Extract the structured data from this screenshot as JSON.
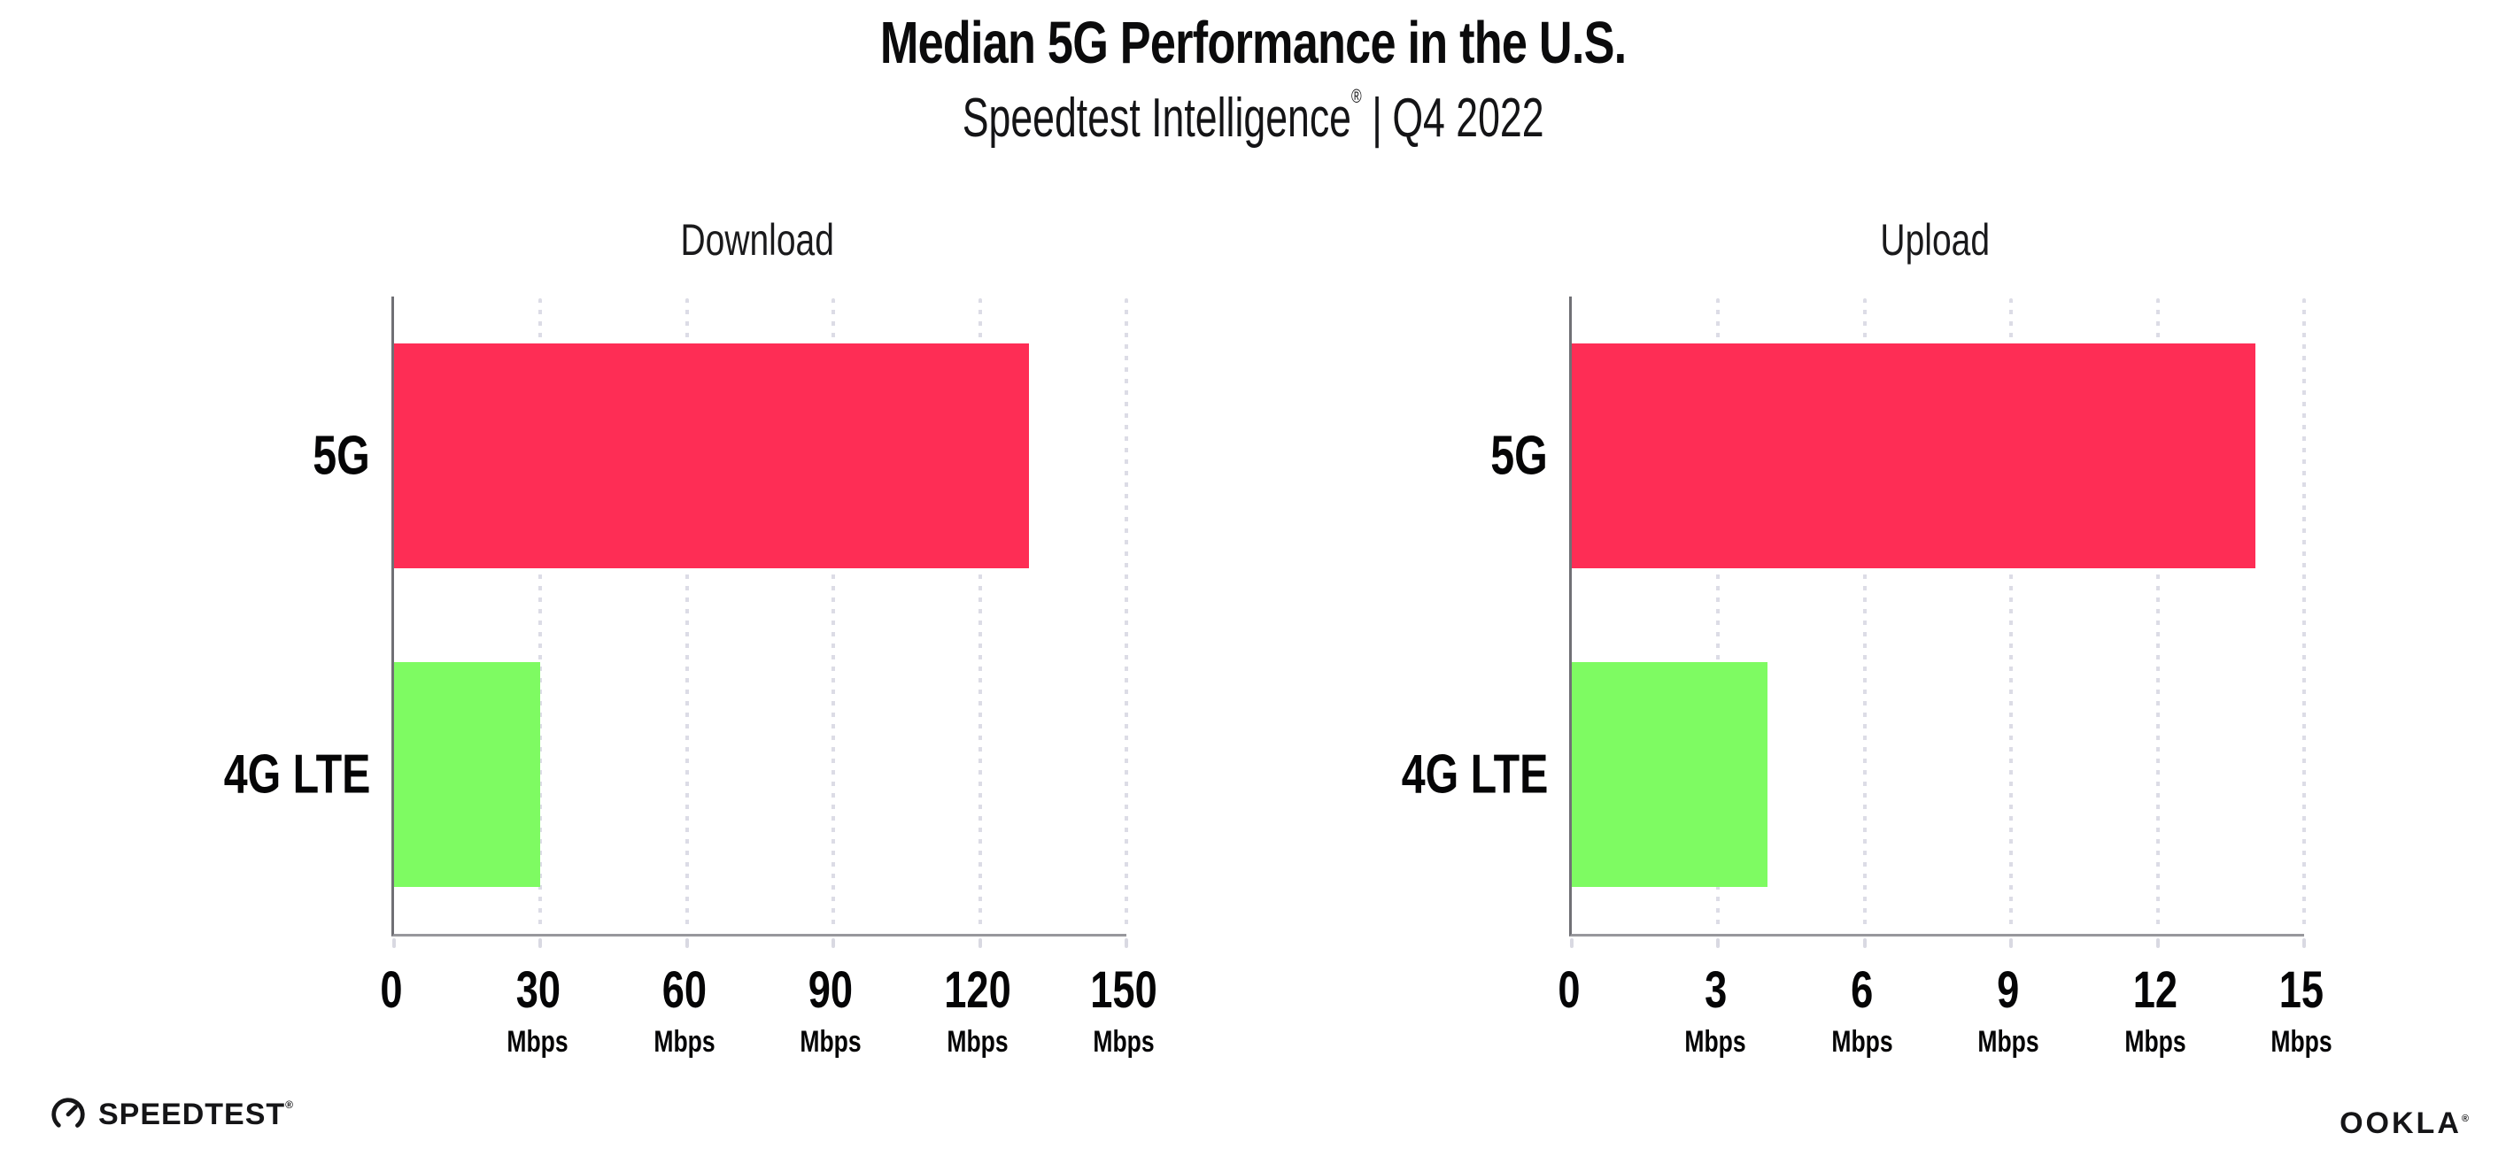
{
  "header": {
    "title": "Median 5G Performance in the U.S.",
    "subtitle_brand": "Speedtest Intelligence",
    "subtitle_registered_mark": "®",
    "subtitle_divider": "|",
    "subtitle_period": "Q4 2022"
  },
  "chart_data": [
    {
      "type": "bar",
      "orientation": "horizontal",
      "title": "Download",
      "categories": [
        "5G",
        "4G LTE"
      ],
      "values": [
        130,
        30
      ],
      "unit": "Mbps",
      "xlim": [
        0,
        150
      ],
      "xticks": [
        0,
        30,
        60,
        90,
        120,
        150
      ],
      "grid": "vertical dotted",
      "legend": "none",
      "bar_colors": [
        "#FE2D55",
        "#7EFB62"
      ]
    },
    {
      "type": "bar",
      "orientation": "horizontal",
      "title": "Upload",
      "categories": [
        "5G",
        "4G LTE"
      ],
      "values": [
        14,
        4
      ],
      "unit": "Mbps",
      "xlim": [
        0,
        15
      ],
      "xticks": [
        0,
        3,
        6,
        9,
        12,
        15
      ],
      "grid": "vertical dotted",
      "legend": "none",
      "bar_colors": [
        "#FE2D55",
        "#7EFB62"
      ]
    }
  ],
  "colors": {
    "bar_5g": "#FE2D55",
    "bar_4g_lte": "#7EFB62",
    "y_axis": "#707075",
    "x_axis": "#97979C",
    "gridline_dots": "#DCDCE6",
    "text": "#0B0B0C"
  },
  "footer": {
    "speedtest_logo_text": "SPEEDTEST",
    "speedtest_registered_mark": "®",
    "ookla_logo_text": "OOKLA",
    "ookla_registered_mark": "®"
  }
}
